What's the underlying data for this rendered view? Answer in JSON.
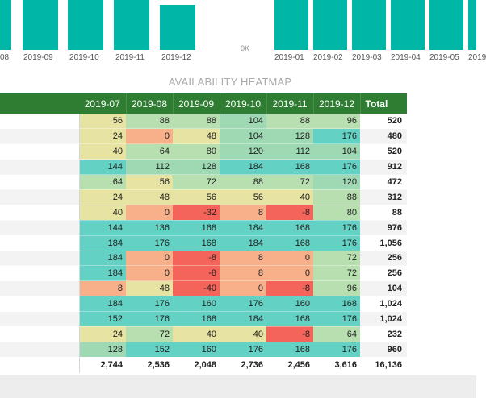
{
  "colors": {
    "bar": "#00b6a6",
    "header_bg": "#2e7d32",
    "cell_green": "#9fd9b4",
    "cell_teal": "#63d2c4",
    "cell_yellow": "#e7e3a2",
    "cell_orange": "#f7b08a",
    "cell_red": "#f5645a",
    "cell_light_green": "#b7dfb0"
  },
  "left_chart": {
    "axis_labels": [
      "08",
      "2019-09",
      "2019-10",
      "2019-11",
      "2019-12"
    ]
  },
  "right_chart": {
    "zero_label": "0K",
    "axis_labels": [
      "2019-01",
      "2019-02",
      "2019-03",
      "2019-04",
      "2019-05",
      "2019"
    ]
  },
  "heatmap": {
    "title": "AVAILABILITY HEATMAP",
    "columns": [
      "2019-07",
      "2019-08",
      "2019-09",
      "2019-10",
      "2019-11",
      "2019-12"
    ],
    "total_label": "Total",
    "rows": [
      {
        "values": [
          56,
          88,
          88,
          104,
          88,
          96
        ],
        "total": "520"
      },
      {
        "values": [
          24,
          0,
          48,
          104,
          128,
          176
        ],
        "total": "480"
      },
      {
        "values": [
          40,
          64,
          80,
          120,
          112,
          104
        ],
        "total": "520"
      },
      {
        "values": [
          144,
          112,
          128,
          184,
          168,
          176
        ],
        "total": "912"
      },
      {
        "values": [
          64,
          56,
          72,
          88,
          72,
          120
        ],
        "total": "472"
      },
      {
        "values": [
          24,
          48,
          56,
          56,
          40,
          88
        ],
        "total": "312"
      },
      {
        "values": [
          40,
          0,
          -32,
          8,
          -8,
          80
        ],
        "total": "88"
      },
      {
        "values": [
          144,
          136,
          168,
          184,
          168,
          176
        ],
        "total": "976"
      },
      {
        "values": [
          184,
          176,
          168,
          184,
          168,
          176
        ],
        "total": "1,056"
      },
      {
        "values": [
          184,
          0,
          -8,
          8,
          0,
          72
        ],
        "total": "256"
      },
      {
        "values": [
          184,
          0,
          -8,
          8,
          0,
          72
        ],
        "total": "256"
      },
      {
        "values": [
          8,
          48,
          -40,
          0,
          -8,
          96
        ],
        "total": "104"
      },
      {
        "values": [
          184,
          176,
          160,
          176,
          160,
          168
        ],
        "total": "1,024"
      },
      {
        "values": [
          152,
          176,
          168,
          184,
          168,
          176
        ],
        "total": "1,024"
      },
      {
        "values": [
          24,
          72,
          40,
          40,
          -8,
          64
        ],
        "total": "232"
      },
      {
        "values": [
          128,
          152,
          160,
          176,
          168,
          176
        ],
        "total": "960"
      }
    ],
    "totals": [
      "2,744",
      "2,536",
      "2,048",
      "2,736",
      "2,456",
      "3,616",
      "16,136"
    ]
  }
}
